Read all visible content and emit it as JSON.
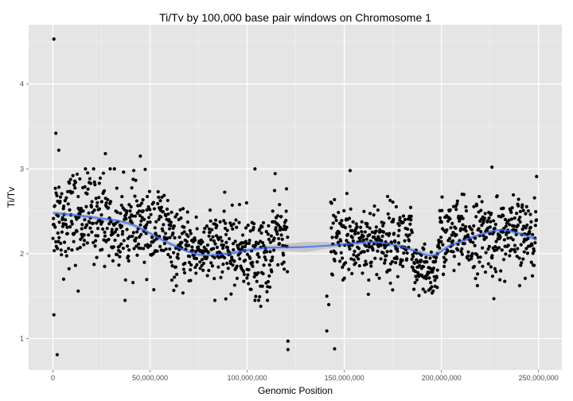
{
  "chart_data": {
    "type": "scatter",
    "title": "Ti/Tv by 100,000 base pair windows on Chromosome 1",
    "xlabel": "Genomic Position",
    "ylabel": "Ti/Tv",
    "xlim": [
      -12500000,
      262000000
    ],
    "ylim": [
      0.63,
      4.7
    ],
    "x_ticks": [
      0,
      50000000,
      100000000,
      150000000,
      200000000,
      250000000
    ],
    "x_tick_labels": [
      "0",
      "50,000,000",
      "100,000,000",
      "150,000,000",
      "200,000,000",
      "250,000,000"
    ],
    "y_ticks": [
      1,
      2,
      3,
      4
    ],
    "y_tick_labels": [
      "1",
      "2",
      "3",
      "4"
    ],
    "grid": true,
    "background": "#e5e5e5",
    "grid_major_color": "#ffffff",
    "grid_minor_color": "#f2f2f2",
    "point_color": "#000000",
    "smooth_color": "#3366ff",
    "smooth_band_color": "#999999",
    "gap": [
      125000000,
      141000000
    ],
    "regions": [
      {
        "from": 0,
        "to": 30000000,
        "mean": 2.45,
        "sd": 0.26
      },
      {
        "from": 30000000,
        "to": 60000000,
        "mean": 2.3,
        "sd": 0.25
      },
      {
        "from": 60000000,
        "to": 80000000,
        "mean": 2.05,
        "sd": 0.2
      },
      {
        "from": 80000000,
        "to": 100000000,
        "mean": 2.05,
        "sd": 0.22
      },
      {
        "from": 100000000,
        "to": 113000000,
        "mean": 1.95,
        "sd": 0.25
      },
      {
        "from": 113000000,
        "to": 121000000,
        "mean": 2.25,
        "sd": 0.22
      },
      {
        "from": 143000000,
        "to": 185000000,
        "mean": 2.15,
        "sd": 0.22
      },
      {
        "from": 185000000,
        "to": 198000000,
        "mean": 1.78,
        "sd": 0.15
      },
      {
        "from": 198000000,
        "to": 249000000,
        "mean": 2.2,
        "sd": 0.22
      }
    ],
    "points": [
      {
        "x": 500000,
        "y": 4.53
      },
      {
        "x": 1500000,
        "y": 3.42
      },
      {
        "x": 500000,
        "y": 1.28
      },
      {
        "x": 2200000,
        "y": 0.81
      },
      {
        "x": 3000000,
        "y": 3.22
      },
      {
        "x": 27000000,
        "y": 3.18
      },
      {
        "x": 45000000,
        "y": 3.15
      },
      {
        "x": 104000000,
        "y": 3.0
      },
      {
        "x": 121000000,
        "y": 0.97
      },
      {
        "x": 121000000,
        "y": 0.87
      },
      {
        "x": 145000000,
        "y": 0.88
      },
      {
        "x": 141000000,
        "y": 1.09
      },
      {
        "x": 142000000,
        "y": 1.4
      },
      {
        "x": 141000000,
        "y": 1.5
      },
      {
        "x": 153000000,
        "y": 2.98
      },
      {
        "x": 226000000,
        "y": 3.02
      },
      {
        "x": 249000000,
        "y": 2.91
      },
      {
        "x": 227000000,
        "y": 1.47
      },
      {
        "x": 5500000,
        "y": 1.7
      },
      {
        "x": 13000000,
        "y": 1.56
      },
      {
        "x": 107000000,
        "y": 1.38
      },
      {
        "x": 104000000,
        "y": 1.45
      }
    ],
    "smooth": [
      {
        "x": 0,
        "y": 2.48
      },
      {
        "x": 20000000,
        "y": 2.43
      },
      {
        "x": 40000000,
        "y": 2.35
      },
      {
        "x": 60000000,
        "y": 2.12
      },
      {
        "x": 75000000,
        "y": 1.99
      },
      {
        "x": 90000000,
        "y": 2.0
      },
      {
        "x": 100000000,
        "y": 2.04
      },
      {
        "x": 110000000,
        "y": 2.07
      },
      {
        "x": 130000000,
        "y": 2.08
      },
      {
        "x": 150000000,
        "y": 2.11
      },
      {
        "x": 165000000,
        "y": 2.14
      },
      {
        "x": 180000000,
        "y": 2.08
      },
      {
        "x": 195000000,
        "y": 1.98
      },
      {
        "x": 205000000,
        "y": 2.1
      },
      {
        "x": 225000000,
        "y": 2.26
      },
      {
        "x": 235000000,
        "y": 2.27
      },
      {
        "x": 249000000,
        "y": 2.17
      }
    ]
  }
}
